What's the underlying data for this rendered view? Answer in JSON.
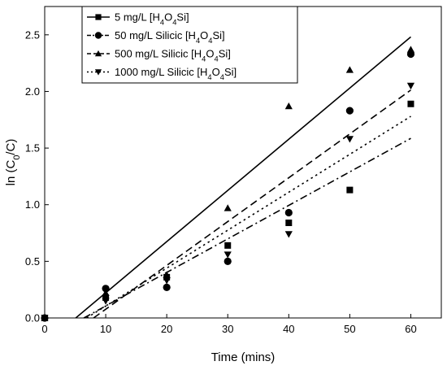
{
  "chart_data": {
    "type": "scatter",
    "xlabel": "Time (mins)",
    "ylabel_parts": [
      "ln (C",
      "0",
      "/C)"
    ],
    "xlim": [
      0,
      65
    ],
    "ylim": [
      0,
      2.75
    ],
    "xticks": [
      0,
      10,
      20,
      30,
      40,
      50,
      60
    ],
    "yticks": [
      0.0,
      0.5,
      1.0,
      1.5,
      2.0,
      2.5
    ],
    "ytick_labels": [
      "0.0",
      "0.5",
      "1.0",
      "1.5",
      "2.0",
      "2.5"
    ],
    "legend_position": "top-left",
    "grid": false,
    "series": [
      {
        "name_parts": [
          "5 mg/L [H",
          "4",
          "O",
          "4",
          "Si]"
        ],
        "marker": "square",
        "line_style": "solid",
        "x": [
          0,
          10,
          20,
          30,
          40,
          50,
          60
        ],
        "y": [
          0.0,
          0.18,
          0.36,
          0.64,
          0.84,
          1.13,
          1.89
        ],
        "fit": {
          "slope": 0.0452,
          "intercept": -0.23
        }
      },
      {
        "name_parts": [
          "50 mg/L Silicic [H",
          "4",
          "O",
          "4",
          "Si]"
        ],
        "marker": "circle",
        "line_style": "dash-dot",
        "x": [
          0,
          10,
          20,
          30,
          40,
          50,
          60
        ],
        "y": [
          0.0,
          0.26,
          0.27,
          0.5,
          0.93,
          1.83,
          2.33
        ],
        "fit": {
          "slope": 0.0296,
          "intercept": -0.19
        }
      },
      {
        "name_parts": [
          "500 mg/L Silicic [H",
          "4",
          "O",
          "4",
          "Si]"
        ],
        "marker": "triangle-up",
        "line_style": "dashed",
        "x": [
          0,
          10,
          20,
          30,
          40,
          50,
          60
        ],
        "y": [
          0.0,
          0.22,
          0.38,
          0.97,
          1.87,
          2.19,
          2.37
        ],
        "fit": {
          "slope": 0.0387,
          "intercept": -0.31
        }
      },
      {
        "name_parts": [
          "1000 mg/L Silicic [H",
          "4",
          "O",
          "4",
          "Si]"
        ],
        "marker": "triangle-down",
        "line_style": "dotted",
        "x": [
          0,
          10,
          20,
          30,
          40,
          50,
          60
        ],
        "y": [
          0.0,
          0.15,
          0.33,
          0.56,
          0.74,
          1.58,
          2.05
        ],
        "fit": {
          "slope": 0.0335,
          "intercept": -0.23
        }
      }
    ]
  }
}
